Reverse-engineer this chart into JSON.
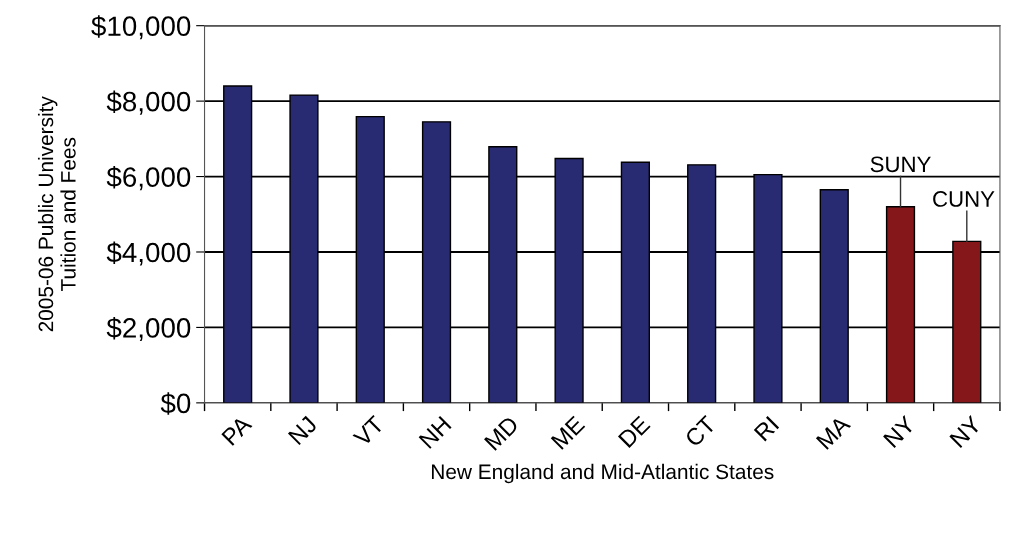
{
  "chart_data": {
    "type": "bar",
    "xlabel": "New England and Mid-Atlantic States",
    "ylabel": "2005-06 Public University\nTuition and Fees",
    "categories": [
      "PA",
      "NJ",
      "VT",
      "NH",
      "MD",
      "ME",
      "DE",
      "CT",
      "RI",
      "MA",
      "NY",
      "NY"
    ],
    "values": [
      8400,
      8160,
      7590,
      7450,
      6790,
      6480,
      6380,
      6310,
      6050,
      5650,
      5200,
      4280
    ],
    "colors": [
      "#282a72",
      "#282a72",
      "#282a72",
      "#282a72",
      "#282a72",
      "#282a72",
      "#282a72",
      "#282a72",
      "#282a72",
      "#282a72",
      "#85161a",
      "#85161a"
    ],
    "ylim": [
      0,
      10000
    ],
    "yticks": [
      {
        "value": 0,
        "label": "$0"
      },
      {
        "value": 2000,
        "label": "$2,000"
      },
      {
        "value": 4000,
        "label": "$4,000"
      },
      {
        "value": 6000,
        "label": "$6,000"
      },
      {
        "value": 8000,
        "label": "$8,000"
      },
      {
        "value": 10000,
        "label": "$10,000"
      }
    ],
    "grid": "y",
    "annotations": [
      {
        "text": "SUNY",
        "y": 5200
      },
      {
        "text": "CUNY",
        "y": 4280
      }
    ]
  }
}
